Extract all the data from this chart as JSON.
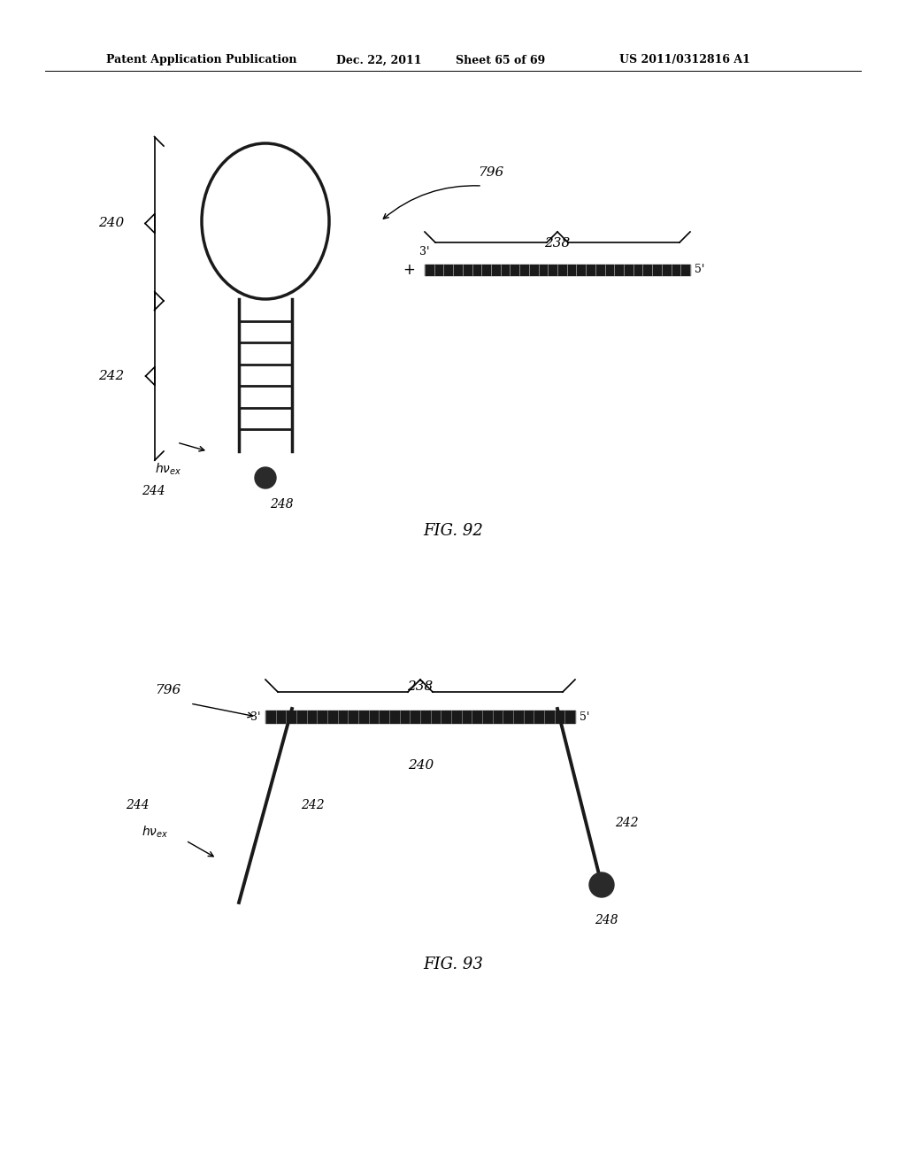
{
  "bg_color": "#ffffff",
  "line_color": "#000000",
  "header_text": "Patent Application Publication",
  "header_date": "Dec. 22, 2011",
  "header_sheet": "Sheet 65 of 69",
  "header_patent": "US 2011/0312816 A1",
  "fig92_caption": "FIG. 92",
  "fig93_caption": "FIG. 93",
  "label_796_fig92": "796",
  "label_238": "238",
  "label_240": "240",
  "label_242": "242",
  "label_244": "244",
  "label_248": "248",
  "label_3prime": "3'",
  "label_5prime": "5'",
  "label_796_fig93": "796",
  "label_238_fig93": "238",
  "label_240_fig93": "240",
  "label_242_fig93_l": "242",
  "label_242_fig93_r": "242",
  "label_244_fig93": "244",
  "label_248_fig93": "248",
  "label_3prime_fig93": "3'",
  "label_5prime_fig93": "5'"
}
